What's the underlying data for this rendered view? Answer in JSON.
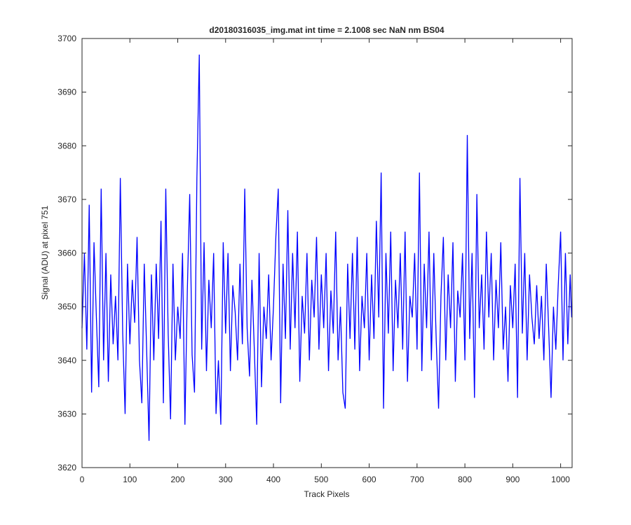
{
  "chart_data": {
    "type": "line",
    "title": "d20180316035_img.mat int time = 2.1008 sec  NaN nm BS04",
    "xlabel": "Track Pixels",
    "ylabel": "Signal (ADU) at pixel 751",
    "color": "#0000ff",
    "xlim": [
      0,
      1024
    ],
    "ylim": [
      3620,
      3700
    ],
    "xticks": [
      0,
      100,
      200,
      300,
      400,
      500,
      600,
      700,
      800,
      900,
      1000
    ],
    "yticks": [
      3620,
      3630,
      3640,
      3650,
      3660,
      3670,
      3680,
      3690,
      3700
    ],
    "x": [
      0,
      5,
      10,
      15,
      20,
      25,
      30,
      35,
      40,
      45,
      50,
      55,
      60,
      65,
      70,
      75,
      80,
      85,
      90,
      95,
      100,
      105,
      110,
      115,
      120,
      125,
      130,
      135,
      140,
      145,
      150,
      155,
      160,
      165,
      170,
      175,
      180,
      185,
      190,
      195,
      200,
      205,
      210,
      215,
      220,
      225,
      230,
      235,
      240,
      245,
      250,
      255,
      260,
      265,
      270,
      275,
      280,
      285,
      290,
      295,
      300,
      305,
      310,
      315,
      320,
      325,
      330,
      335,
      340,
      345,
      350,
      355,
      360,
      365,
      370,
      375,
      380,
      385,
      390,
      395,
      400,
      405,
      410,
      415,
      420,
      425,
      430,
      435,
      440,
      445,
      450,
      455,
      460,
      465,
      470,
      475,
      480,
      485,
      490,
      495,
      500,
      505,
      510,
      515,
      520,
      525,
      530,
      535,
      540,
      545,
      550,
      555,
      560,
      565,
      570,
      575,
      580,
      585,
      590,
      595,
      600,
      605,
      610,
      615,
      620,
      625,
      630,
      635,
      640,
      645,
      650,
      655,
      660,
      665,
      670,
      675,
      680,
      685,
      690,
      695,
      700,
      705,
      710,
      715,
      720,
      725,
      730,
      735,
      740,
      745,
      750,
      755,
      760,
      765,
      770,
      775,
      780,
      785,
      790,
      795,
      800,
      805,
      810,
      815,
      820,
      825,
      830,
      835,
      840,
      845,
      850,
      855,
      860,
      865,
      870,
      875,
      880,
      885,
      890,
      895,
      900,
      905,
      910,
      915,
      920,
      925,
      930,
      935,
      940,
      945,
      950,
      955,
      960,
      965,
      970,
      975,
      980,
      985,
      990,
      995,
      1000,
      1005,
      1010,
      1015,
      1020,
      1023
    ],
    "values": [
      3646,
      3660,
      3642,
      3669,
      3634,
      3662,
      3648,
      3635,
      3672,
      3640,
      3660,
      3636,
      3656,
      3643,
      3652,
      3640,
      3674,
      3645,
      3630,
      3658,
      3643,
      3655,
      3647,
      3663,
      3640,
      3632,
      3658,
      3642,
      3625,
      3656,
      3640,
      3658,
      3644,
      3666,
      3632,
      3672,
      3645,
      3629,
      3658,
      3640,
      3650,
      3644,
      3660,
      3628,
      3653,
      3671,
      3641,
      3634,
      3674,
      3697,
      3642,
      3662,
      3638,
      3655,
      3646,
      3660,
      3630,
      3640,
      3628,
      3662,
      3645,
      3660,
      3638,
      3654,
      3649,
      3640,
      3658,
      3643,
      3672,
      3646,
      3637,
      3655,
      3642,
      3628,
      3660,
      3635,
      3650,
      3644,
      3656,
      3640,
      3650,
      3663,
      3672,
      3632,
      3658,
      3644,
      3668,
      3642,
      3660,
      3646,
      3664,
      3636,
      3652,
      3645,
      3660,
      3640,
      3655,
      3648,
      3663,
      3642,
      3656,
      3646,
      3660,
      3638,
      3653,
      3645,
      3664,
      3640,
      3650,
      3634,
      3631,
      3658,
      3644,
      3660,
      3642,
      3663,
      3638,
      3652,
      3646,
      3660,
      3640,
      3656,
      3644,
      3666,
      3648,
      3675,
      3631,
      3660,
      3645,
      3664,
      3638,
      3655,
      3646,
      3660,
      3642,
      3664,
      3636,
      3652,
      3648,
      3660,
      3642,
      3675,
      3638,
      3658,
      3646,
      3664,
      3640,
      3660,
      3644,
      3631,
      3652,
      3663,
      3640,
      3656,
      3646,
      3662,
      3636,
      3653,
      3648,
      3660,
      3640,
      3682,
      3644,
      3660,
      3633,
      3671,
      3646,
      3656,
      3642,
      3664,
      3648,
      3660,
      3640,
      3655,
      3646,
      3662,
      3642,
      3650,
      3636,
      3654,
      3646,
      3658,
      3633,
      3674,
      3645,
      3660,
      3640,
      3656,
      3648,
      3643,
      3654,
      3644,
      3652,
      3640,
      3658,
      3646,
      3633,
      3650,
      3642,
      3654,
      3664,
      3640,
      3660,
      3643,
      3656,
      3648
    ]
  }
}
